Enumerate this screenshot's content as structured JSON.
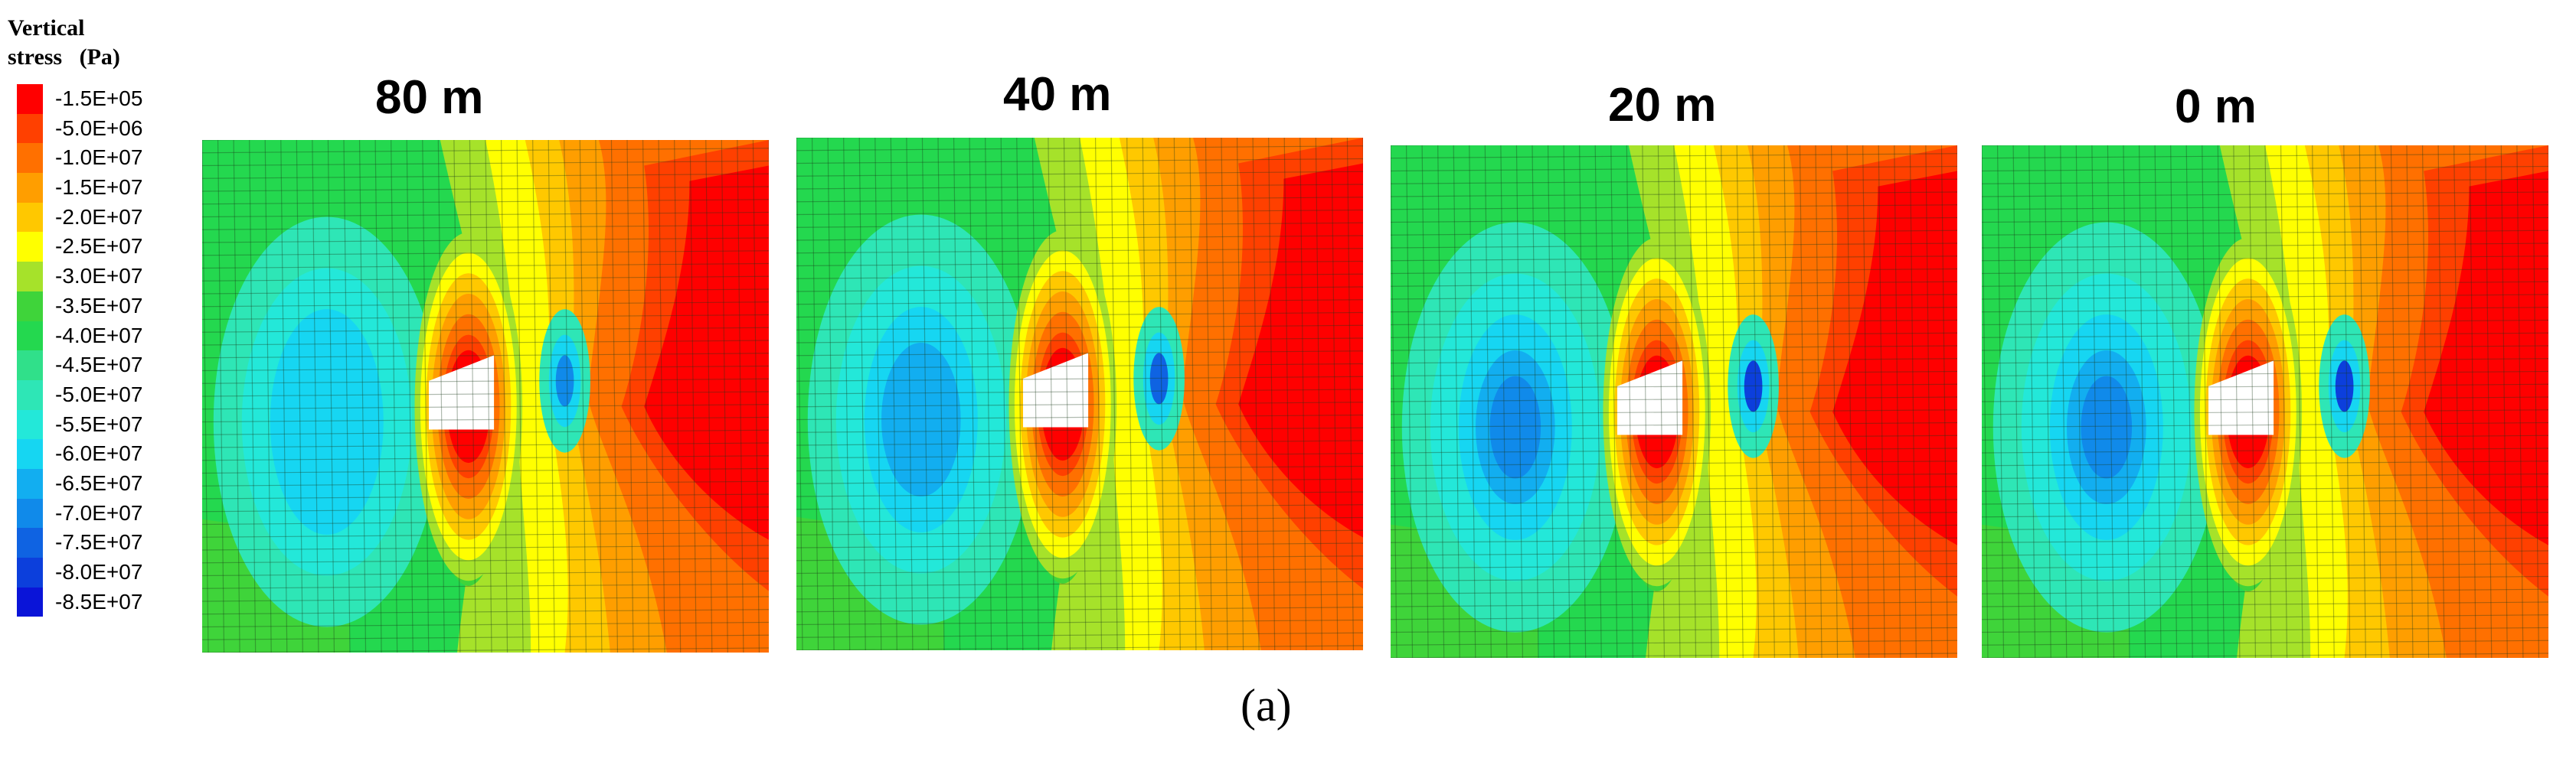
{
  "legend": {
    "title_line1": "Vertical",
    "title_line2": "stress   (Pa)",
    "entries": [
      {
        "label": "-1.5E+05",
        "color": "#ff0000"
      },
      {
        "label": "-5.0E+06",
        "color": "#ff4000"
      },
      {
        "label": "-1.0E+07",
        "color": "#ff7000"
      },
      {
        "label": "-1.5E+07",
        "color": "#ff9e00"
      },
      {
        "label": "-2.0E+07",
        "color": "#ffc800"
      },
      {
        "label": "-2.5E+07",
        "color": "#ffff00"
      },
      {
        "label": "-3.0E+07",
        "color": "#a6e22a"
      },
      {
        "label": "-3.5E+07",
        "color": "#3fd43a"
      },
      {
        "label": "-4.0E+07",
        "color": "#24d84f"
      },
      {
        "label": "-4.5E+07",
        "color": "#30e08a"
      },
      {
        "label": "-5.0E+07",
        "color": "#2ee6b6"
      },
      {
        "label": "-5.5E+07",
        "color": "#23e8d9"
      },
      {
        "label": "-6.0E+07",
        "color": "#16d6f2"
      },
      {
        "label": "-6.5E+07",
        "color": "#12aef0"
      },
      {
        "label": "-7.0E+07",
        "color": "#108aea"
      },
      {
        "label": "-7.5E+07",
        "color": "#0f63e2"
      },
      {
        "label": "-8.0E+07",
        "color": "#0c3fdc"
      },
      {
        "label": "-8.5E+07",
        "color": "#0a14d8"
      }
    ]
  },
  "panels": [
    {
      "title": "80 m",
      "blue_level": 1
    },
    {
      "title": "40 m",
      "blue_level": 2
    },
    {
      "title": "20 m",
      "blue_level": 3
    },
    {
      "title": "0 m",
      "blue_level": 3
    }
  ],
  "caption": "(a)"
}
